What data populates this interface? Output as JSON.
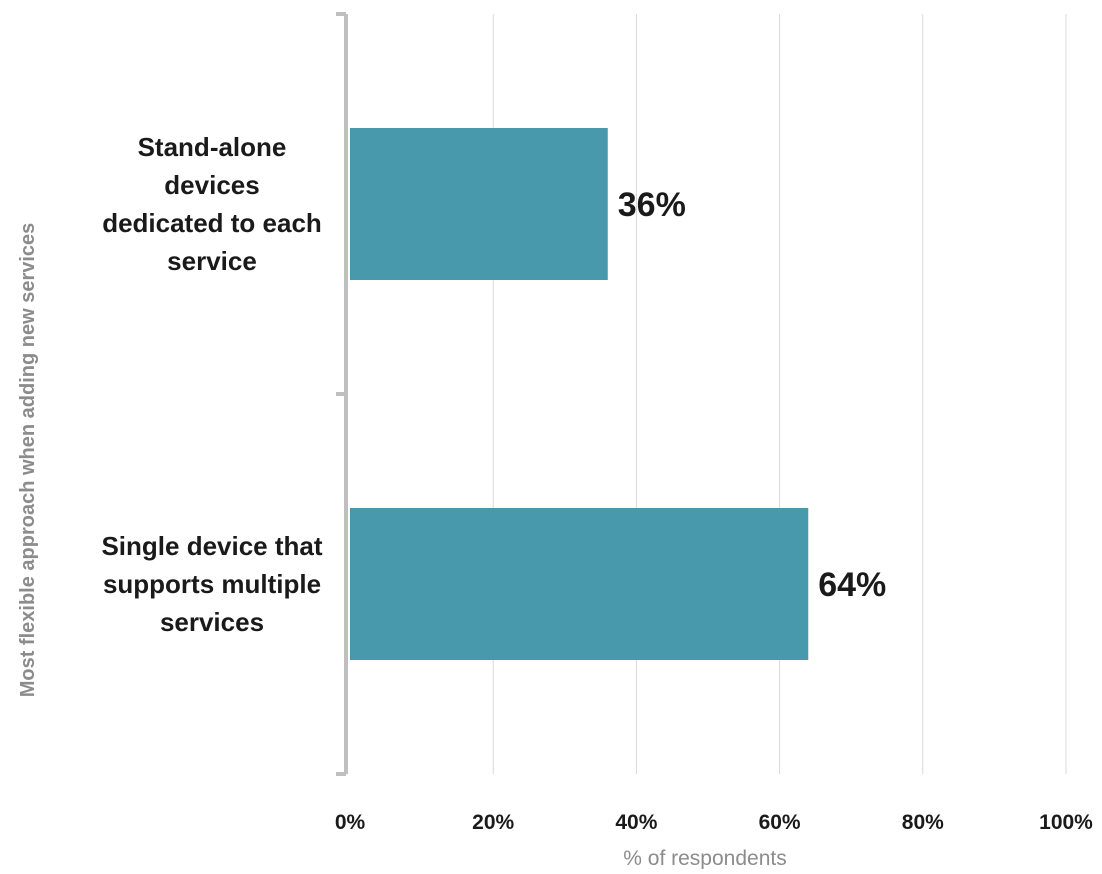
{
  "chart_data": {
    "type": "bar",
    "orientation": "horizontal",
    "categories": [
      "Stand-alone devices dedicated to each service",
      "Single device that supports multiple services"
    ],
    "category_label_lines": [
      [
        "Stand-alone",
        "devices",
        "dedicated to each",
        "service"
      ],
      [
        "Single device that",
        "supports multiple",
        "services"
      ]
    ],
    "values": [
      36,
      64
    ],
    "data_labels": [
      "36%",
      "64%"
    ],
    "xlabel": "% of respondents",
    "ylabel": "Most flexible approach when adding new services",
    "xlim": [
      0,
      100
    ],
    "x_ticks": [
      0,
      20,
      40,
      60,
      80,
      100
    ],
    "x_tick_labels": [
      "0%",
      "20%",
      "40%",
      "60%",
      "80%",
      "100%"
    ],
    "grid": "vertical",
    "legend": "none",
    "colors": {
      "bar": "#4899ab",
      "grid": "#d9d9d9",
      "axis": "#bfbfbf",
      "label_text": "#1a1a1a",
      "axis_title_text": "#8c8c8c"
    }
  }
}
